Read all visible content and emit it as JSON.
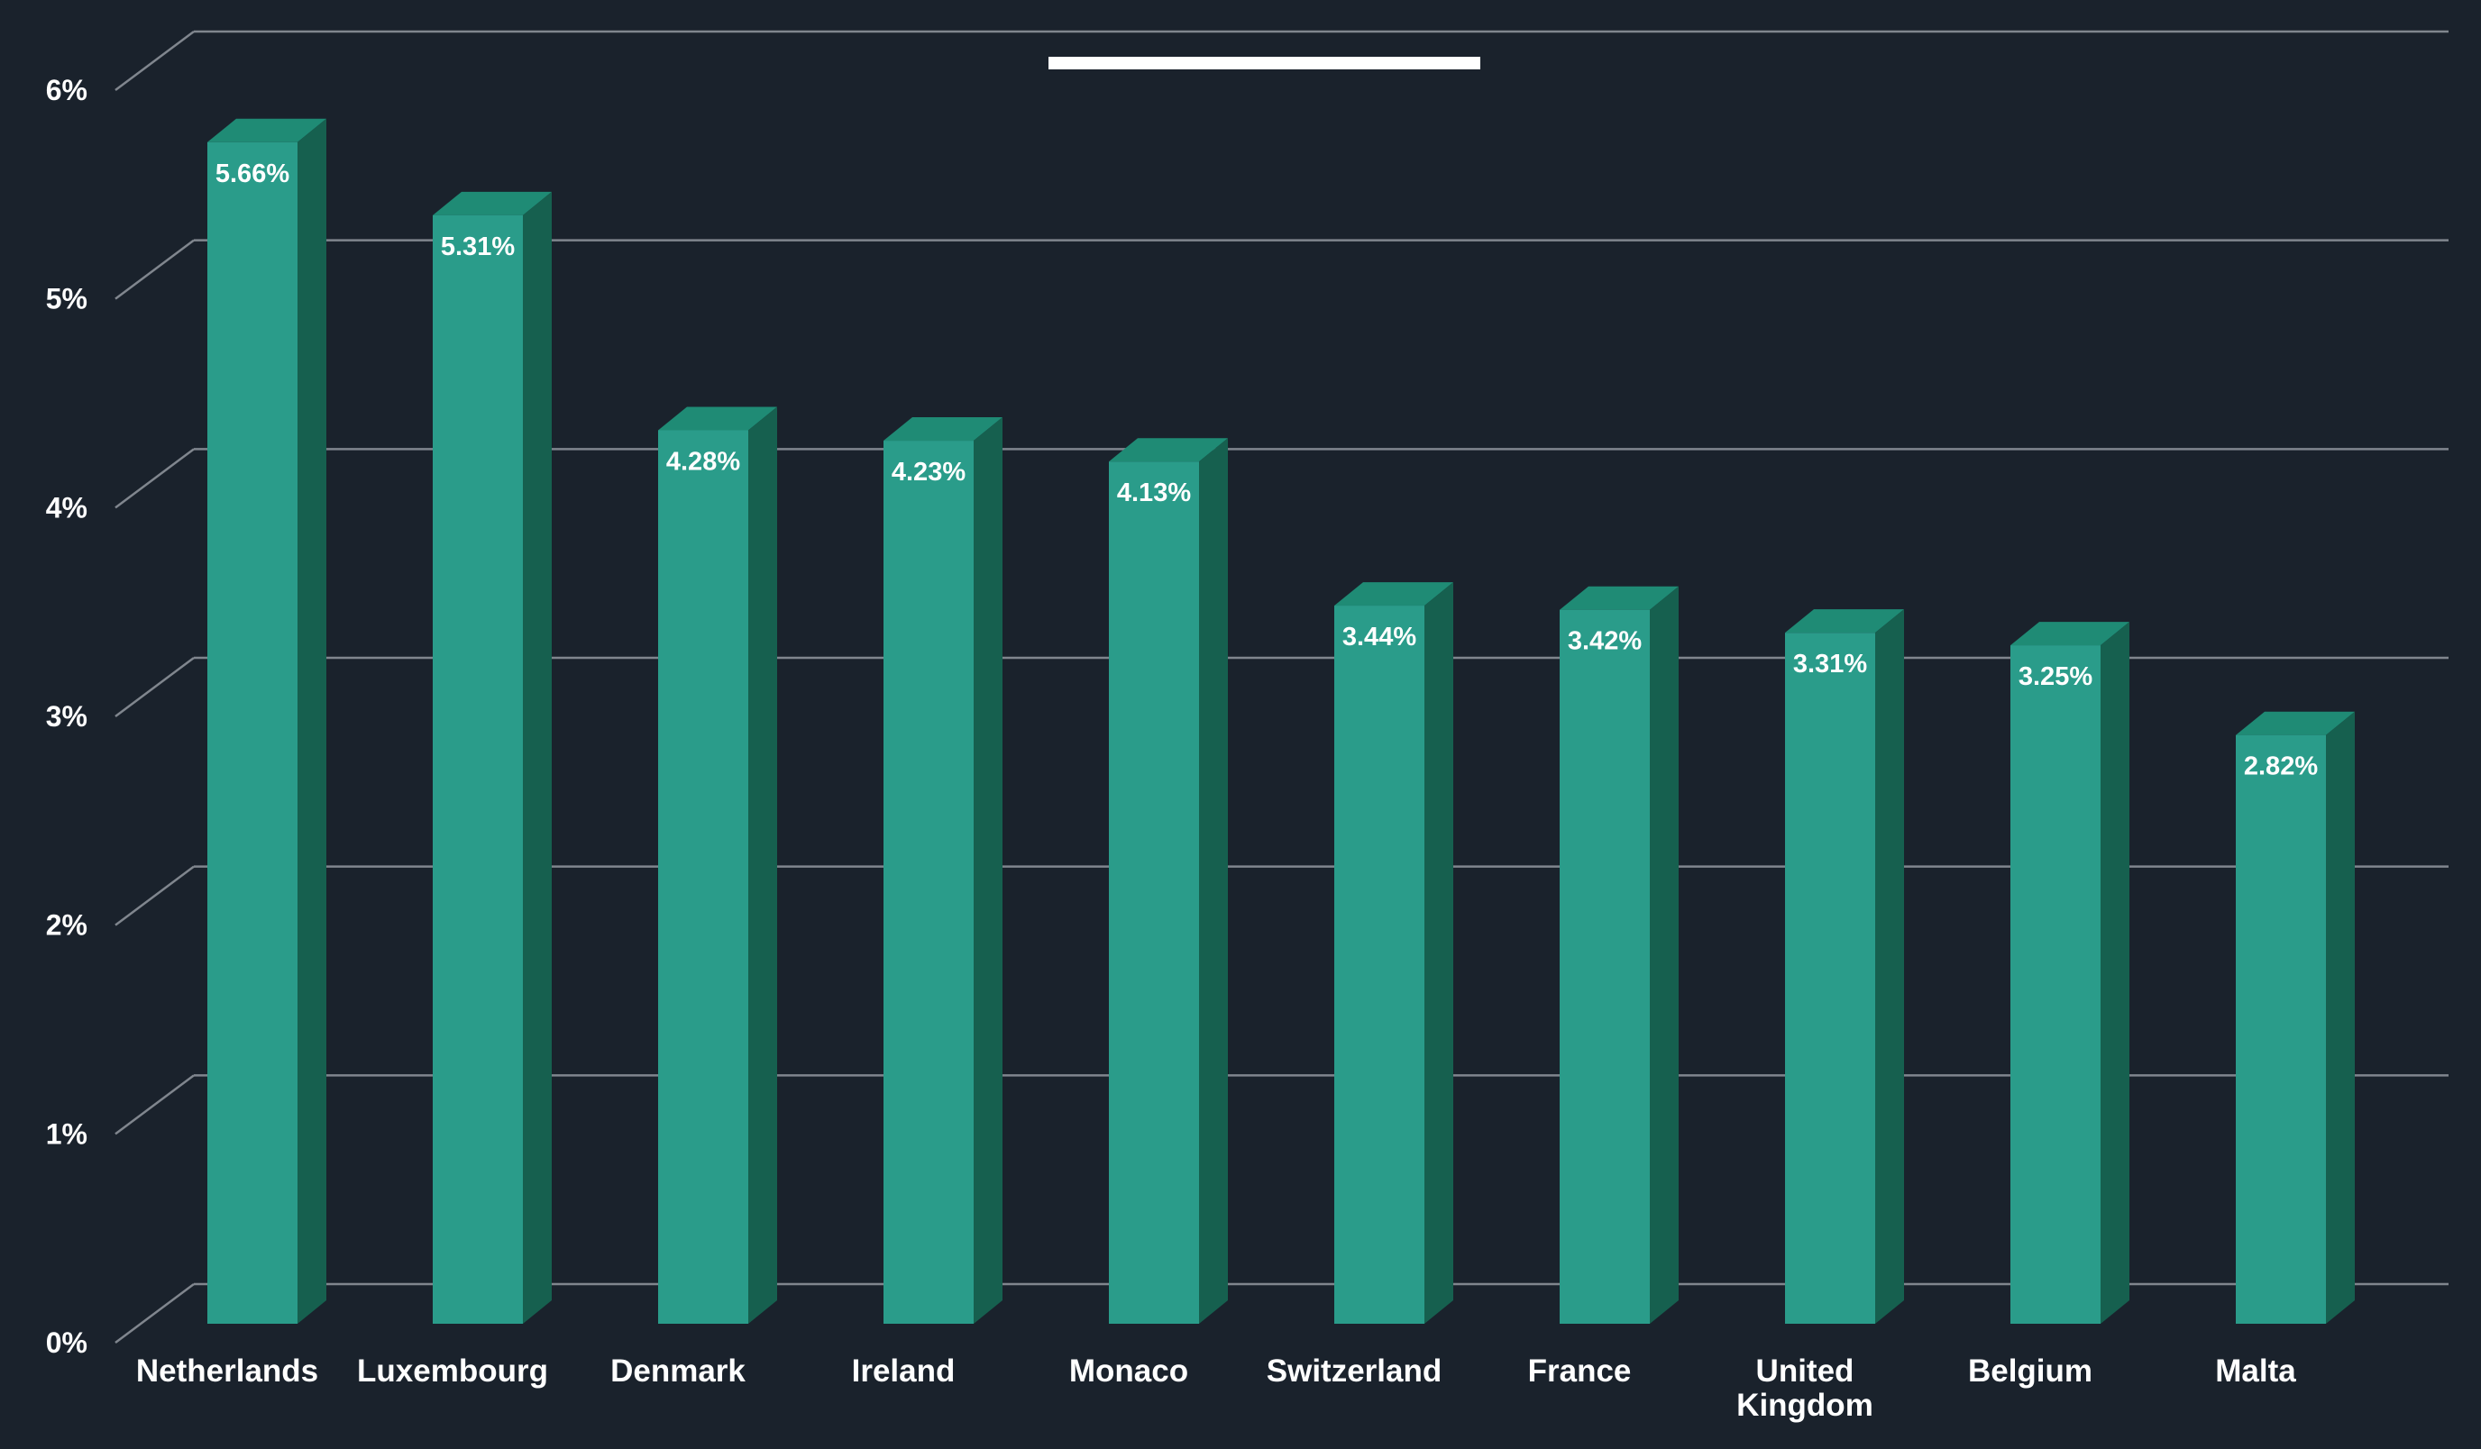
{
  "chart_data": {
    "type": "bar",
    "style": "3d-column",
    "title_redacted": true,
    "categories": [
      "Netherlands",
      "Luxembourg",
      "Denmark",
      "Ireland",
      "Monaco",
      "Switzerland",
      "France",
      "United Kingdom",
      "Belgium",
      "Malta"
    ],
    "x_labels_lines": [
      [
        "Netherlands"
      ],
      [
        "Luxembourg"
      ],
      [
        "Denmark"
      ],
      [
        "Ireland"
      ],
      [
        "Monaco"
      ],
      [
        "Switzerland"
      ],
      [
        "France"
      ],
      [
        "United",
        "Kingdom"
      ],
      [
        "Belgium"
      ],
      [
        "Malta"
      ]
    ],
    "values": [
      5.66,
      5.31,
      4.28,
      4.23,
      4.13,
      3.44,
      3.42,
      3.31,
      3.25,
      2.82
    ],
    "value_labels": [
      "5.66%",
      "5.31%",
      "4.28%",
      "4.23%",
      "4.13%",
      "3.44%",
      "3.42%",
      "3.31%",
      "3.25%",
      "2.82%"
    ],
    "y_ticks": [
      "0%",
      "1%",
      "2%",
      "3%",
      "4%",
      "5%",
      "6%"
    ],
    "ylim": [
      0,
      6
    ],
    "grid": true,
    "legend": false,
    "colors": {
      "background": "#1A222C",
      "bar_front": "#2A9C8A",
      "bar_top": "#1F8B75",
      "bar_side": "#16604F",
      "gridline": "#80868E",
      "text": "#FFFFFF",
      "redaction": "#FFFFFF"
    }
  }
}
